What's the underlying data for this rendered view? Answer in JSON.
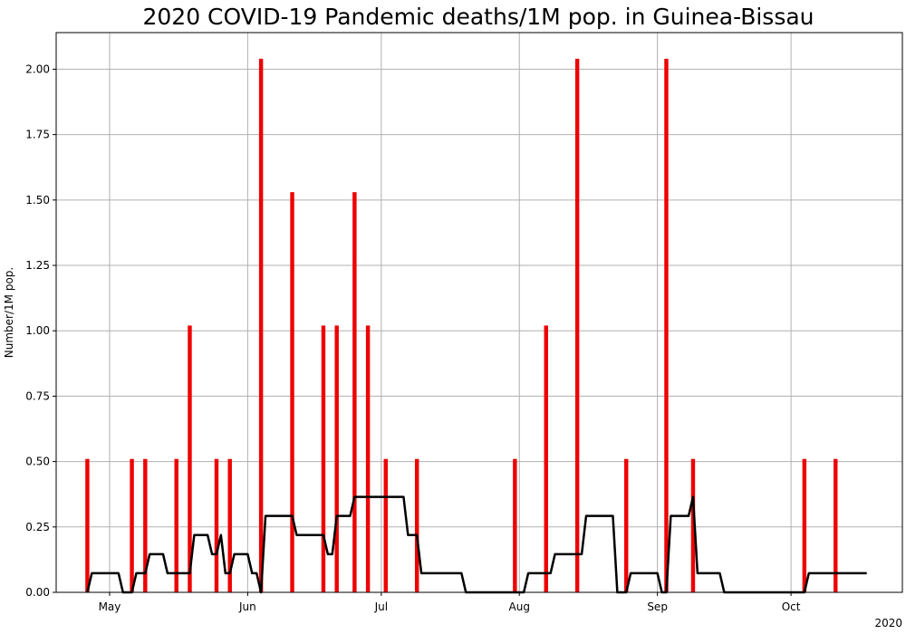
{
  "chart_data": {
    "type": "bar",
    "title": "2020 COVID-19 Pandemic deaths/1M pop. in Guinea-Bissau",
    "ylabel": "Number/1M pop.",
    "xlabel": "",
    "year_label": "2020",
    "ylim": [
      0,
      2.14
    ],
    "xlim": [
      "2020-04-19",
      "2020-10-26"
    ],
    "grid": true,
    "y_ticks": [
      0.0,
      0.25,
      0.5,
      0.75,
      1.0,
      1.25,
      1.5,
      1.75,
      2.0
    ],
    "y_tick_labels": [
      "0.00",
      "0.25",
      "0.50",
      "0.75",
      "1.00",
      "1.25",
      "1.50",
      "1.75",
      "2.00"
    ],
    "x_ticks": [
      "2020-05-01",
      "2020-06-01",
      "2020-07-01",
      "2020-08-01",
      "2020-09-01",
      "2020-10-01"
    ],
    "x_tick_labels": [
      "May",
      "Jun",
      "Jul",
      "Aug",
      "Sep",
      "Oct"
    ],
    "colors": {
      "bars": "#ee0000",
      "line": "#000000",
      "grid": "#b0b0b0"
    },
    "bars": {
      "dates": [
        "2020-04-26",
        "2020-05-06",
        "2020-05-09",
        "2020-05-16",
        "2020-05-19",
        "2020-05-25",
        "2020-05-28",
        "2020-06-04",
        "2020-06-11",
        "2020-06-18",
        "2020-06-21",
        "2020-06-25",
        "2020-06-28",
        "2020-07-02",
        "2020-07-09",
        "2020-07-31",
        "2020-08-07",
        "2020-08-14",
        "2020-08-25",
        "2020-09-03",
        "2020-09-09",
        "2020-10-04",
        "2020-10-11"
      ],
      "values": [
        0.51,
        0.51,
        0.51,
        0.51,
        1.02,
        0.51,
        0.51,
        2.04,
        1.53,
        1.02,
        1.02,
        1.53,
        1.02,
        0.51,
        0.51,
        0.51,
        1.02,
        2.04,
        0.51,
        2.04,
        0.51,
        0.51,
        0.51
      ]
    },
    "line": {
      "name": "",
      "points": [
        [
          "2020-04-26",
          0.0
        ],
        [
          "2020-04-27",
          0.073
        ],
        [
          "2020-05-03",
          0.073
        ],
        [
          "2020-05-04",
          0.0
        ],
        [
          "2020-05-06",
          0.0
        ],
        [
          "2020-05-07",
          0.073
        ],
        [
          "2020-05-09",
          0.073
        ],
        [
          "2020-05-10",
          0.146
        ],
        [
          "2020-05-13",
          0.146
        ],
        [
          "2020-05-14",
          0.073
        ],
        [
          "2020-05-19",
          0.073
        ],
        [
          "2020-05-20",
          0.219
        ],
        [
          "2020-05-23",
          0.219
        ],
        [
          "2020-05-24",
          0.146
        ],
        [
          "2020-05-25",
          0.146
        ],
        [
          "2020-05-26",
          0.219
        ],
        [
          "2020-05-27",
          0.073
        ],
        [
          "2020-05-28",
          0.073
        ],
        [
          "2020-05-29",
          0.146
        ],
        [
          "2020-06-01",
          0.146
        ],
        [
          "2020-06-02",
          0.073
        ],
        [
          "2020-06-03",
          0.073
        ],
        [
          "2020-06-04",
          0.0
        ],
        [
          "2020-06-05",
          0.292
        ],
        [
          "2020-06-11",
          0.292
        ],
        [
          "2020-06-12",
          0.219
        ],
        [
          "2020-06-18",
          0.219
        ],
        [
          "2020-06-19",
          0.146
        ],
        [
          "2020-06-20",
          0.146
        ],
        [
          "2020-06-21",
          0.292
        ],
        [
          "2020-06-24",
          0.292
        ],
        [
          "2020-06-25",
          0.365
        ],
        [
          "2020-07-06",
          0.365
        ],
        [
          "2020-07-07",
          0.219
        ],
        [
          "2020-07-09",
          0.219
        ],
        [
          "2020-07-10",
          0.073
        ],
        [
          "2020-07-19",
          0.073
        ],
        [
          "2020-07-20",
          0.0
        ],
        [
          "2020-08-02",
          0.0
        ],
        [
          "2020-08-03",
          0.073
        ],
        [
          "2020-08-08",
          0.073
        ],
        [
          "2020-08-09",
          0.146
        ],
        [
          "2020-08-15",
          0.146
        ],
        [
          "2020-08-16",
          0.292
        ],
        [
          "2020-08-22",
          0.292
        ],
        [
          "2020-08-23",
          0.0
        ],
        [
          "2020-08-25",
          0.0
        ],
        [
          "2020-08-26",
          0.073
        ],
        [
          "2020-09-01",
          0.073
        ],
        [
          "2020-09-02",
          0.0
        ],
        [
          "2020-09-03",
          0.0
        ],
        [
          "2020-09-04",
          0.292
        ],
        [
          "2020-09-08",
          0.292
        ],
        [
          "2020-09-09",
          0.365
        ],
        [
          "2020-09-10",
          0.073
        ],
        [
          "2020-09-15",
          0.073
        ],
        [
          "2020-09-16",
          0.0
        ],
        [
          "2020-10-04",
          0.0
        ],
        [
          "2020-10-05",
          0.073
        ],
        [
          "2020-10-18",
          0.073
        ]
      ]
    }
  }
}
